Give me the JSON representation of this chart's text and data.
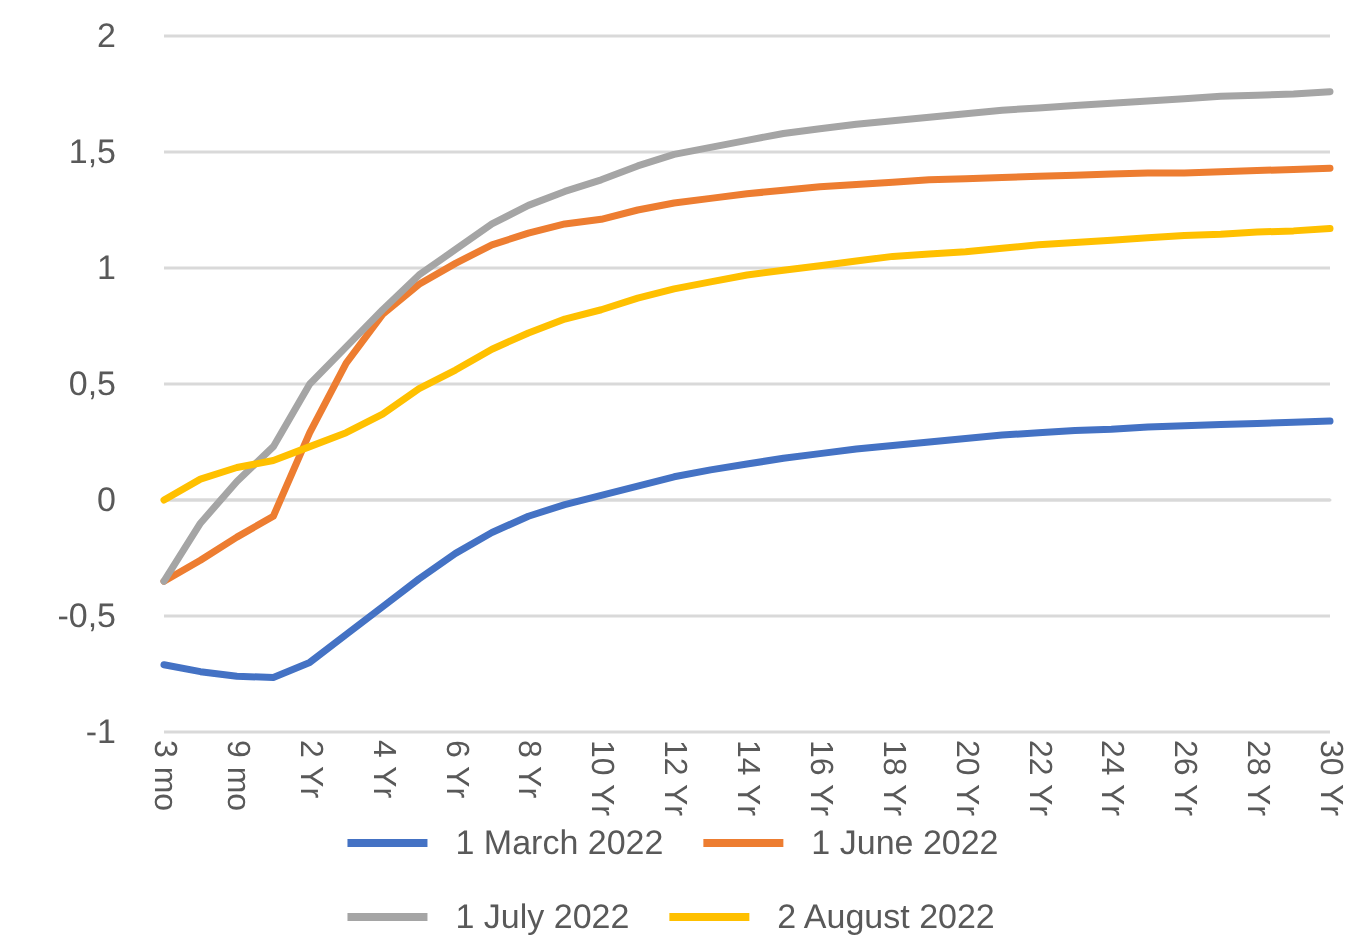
{
  "chart_data": {
    "type": "line",
    "categories": [
      "3 mo",
      null,
      "9 mo",
      null,
      "2 Yr",
      null,
      "4 Yr",
      null,
      "6 Yr",
      null,
      "8 Yr",
      null,
      "10 Yr",
      null,
      "12 Yr",
      null,
      "14 Yr",
      null,
      "16 Yr",
      null,
      "18 Yr",
      null,
      "20 Yr",
      null,
      "22 Yr",
      null,
      "24 Yr",
      null,
      "26 Yr",
      null,
      "28 Yr",
      null,
      "30 Yr"
    ],
    "series": [
      {
        "name": "1 March 2022",
        "color": "#4472c4",
        "values": [
          -0.71,
          -0.74,
          -0.76,
          -0.765,
          -0.7,
          -0.58,
          -0.46,
          -0.34,
          -0.23,
          -0.14,
          -0.07,
          -0.02,
          0.02,
          0.06,
          0.1,
          0.13,
          0.155,
          0.18,
          0.2,
          0.22,
          0.235,
          0.25,
          0.265,
          0.28,
          0.29,
          0.3,
          0.305,
          0.315,
          0.32,
          0.325,
          0.33,
          0.335,
          0.34
        ]
      },
      {
        "name": "1 June 2022",
        "color": "#ed7d31",
        "values": [
          -0.35,
          -0.26,
          -0.16,
          -0.07,
          0.29,
          0.59,
          0.8,
          0.93,
          1.02,
          1.1,
          1.15,
          1.19,
          1.21,
          1.25,
          1.28,
          1.3,
          1.32,
          1.335,
          1.35,
          1.36,
          1.37,
          1.38,
          1.385,
          1.39,
          1.395,
          1.4,
          1.405,
          1.41,
          1.41,
          1.415,
          1.42,
          1.425,
          1.43
        ]
      },
      {
        "name": "1 July 2022",
        "color": "#a5a5a5",
        "values": [
          -0.35,
          -0.1,
          0.08,
          0.23,
          0.5,
          0.66,
          0.82,
          0.97,
          1.08,
          1.19,
          1.27,
          1.33,
          1.38,
          1.44,
          1.49,
          1.52,
          1.55,
          1.58,
          1.6,
          1.62,
          1.635,
          1.65,
          1.665,
          1.68,
          1.69,
          1.7,
          1.71,
          1.72,
          1.73,
          1.74,
          1.745,
          1.75,
          1.76
        ]
      },
      {
        "name": "2 August 2022",
        "color": "#ffc000",
        "values": [
          0.0,
          0.09,
          0.14,
          0.17,
          0.23,
          0.29,
          0.37,
          0.48,
          0.56,
          0.65,
          0.72,
          0.78,
          0.82,
          0.87,
          0.91,
          0.94,
          0.97,
          0.99,
          1.01,
          1.03,
          1.05,
          1.06,
          1.07,
          1.085,
          1.1,
          1.11,
          1.12,
          1.13,
          1.14,
          1.145,
          1.155,
          1.16,
          1.17
        ]
      }
    ],
    "ylim": [
      -1,
      2
    ],
    "yticks": [
      {
        "value": -1,
        "label": "-1"
      },
      {
        "value": -0.5,
        "label": "-0,5"
      },
      {
        "value": 0,
        "label": "0"
      },
      {
        "value": 0.5,
        "label": "0,5"
      },
      {
        "value": 1,
        "label": "1"
      },
      {
        "value": 1.5,
        "label": "1,5"
      },
      {
        "value": 2,
        "label": "2"
      }
    ],
    "grid": "y",
    "legend": "bottom",
    "marker": "none",
    "line_style": "solid"
  }
}
